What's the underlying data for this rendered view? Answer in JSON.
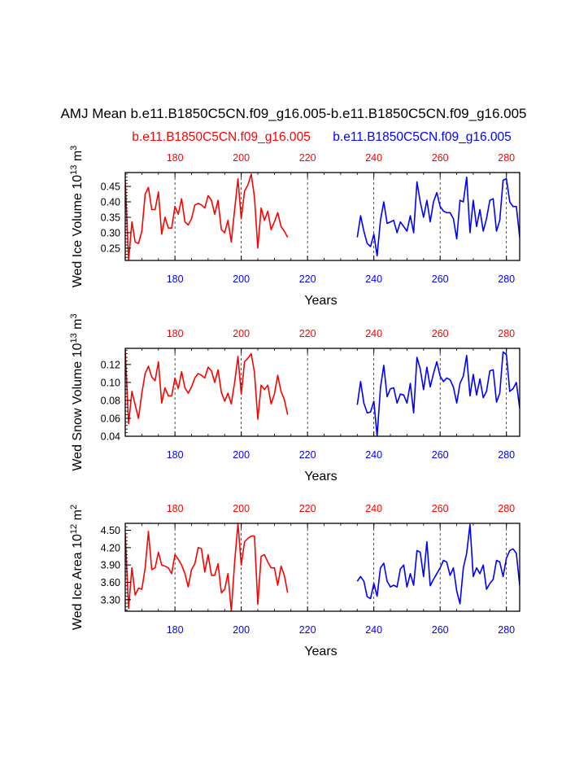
{
  "title": "AMJ Mean b.e11.B1850C5CN.f09_g16.005-b.e11.B1850C5CN.f09_g16.005",
  "subtitle_left": "b.e11.B1850C5CN.f09_g16.005",
  "subtitle_right": "b.e11.B1850C5CN.f09_g16.005",
  "colors": {
    "series1": "#ff0000",
    "series2": "#0000ff",
    "axis": "#000000"
  },
  "chart_data": [
    {
      "type": "line",
      "ylabel_main": "Wed Ice Volume 10",
      "ylabel_exp": "13",
      "ylabel_unit": "m",
      "ylabel_unit_exp": "3",
      "xlabel": "Years",
      "xlim": [
        165,
        284
      ],
      "ylim": [
        0.21,
        0.495
      ],
      "yticks": [
        0.25,
        0.3,
        0.35,
        0.4,
        0.45
      ],
      "ytick_labels": [
        "0.25",
        "0.30",
        "0.35",
        "0.40",
        "0.45"
      ],
      "xticks": [
        180,
        200,
        220,
        240,
        260,
        280
      ],
      "xticks_top": [
        180,
        200,
        220,
        240,
        260,
        280
      ],
      "xticks_bottom": [
        180,
        200,
        220,
        240,
        260,
        280
      ],
      "series": [
        {
          "x_start": 165,
          "values": [
            0.47,
            0.21,
            0.335,
            0.27,
            0.265,
            0.305,
            0.425,
            0.447,
            0.375,
            0.375,
            0.432,
            0.295,
            0.35,
            0.315,
            0.315,
            0.385,
            0.36,
            0.41,
            0.335,
            0.325,
            0.345,
            0.39,
            0.395,
            0.39,
            0.38,
            0.42,
            0.405,
            0.36,
            0.405,
            0.31,
            0.3,
            0.34,
            0.27,
            0.375,
            0.475,
            0.345,
            0.435,
            0.455,
            0.49,
            0.415,
            0.25,
            0.38,
            0.34,
            0.37,
            0.31,
            0.335,
            0.365,
            0.32,
            0.305,
            0.285
          ]
        },
        {
          "x_start": 235,
          "values": [
            0.285,
            0.355,
            0.305,
            0.265,
            0.255,
            0.295,
            0.225,
            0.34,
            0.4,
            0.33,
            0.335,
            0.34,
            0.3,
            0.335,
            0.32,
            0.305,
            0.355,
            0.3,
            0.465,
            0.4,
            0.35,
            0.405,
            0.335,
            0.4,
            0.43,
            0.385,
            0.37,
            0.365,
            0.365,
            0.345,
            0.28,
            0.405,
            0.4,
            0.48,
            0.3,
            0.405,
            0.32,
            0.375,
            0.305,
            0.345,
            0.405,
            0.41,
            0.305,
            0.34,
            0.47,
            0.475,
            0.4,
            0.385,
            0.385,
            0.285
          ]
        }
      ]
    },
    {
      "type": "line",
      "ylabel_main": "Wed Snow Volume 10",
      "ylabel_exp": "13",
      "ylabel_unit": "m",
      "ylabel_unit_exp": "3",
      "xlabel": "Years",
      "xlim": [
        165,
        284
      ],
      "ylim": [
        0.04,
        0.138
      ],
      "yticks": [
        0.04,
        0.06,
        0.08,
        0.1,
        0.12
      ],
      "ytick_labels": [
        "0.04",
        "0.06",
        "0.08",
        "0.10",
        "0.12"
      ],
      "xticks": [
        180,
        200,
        220,
        240,
        260,
        280
      ],
      "xticks_top": [
        180,
        200,
        220,
        240,
        260,
        280
      ],
      "xticks_bottom": [
        180,
        200,
        220,
        240,
        260,
        280
      ],
      "series": [
        {
          "x_start": 165,
          "values": [
            0.136,
            0.054,
            0.09,
            0.075,
            0.06,
            0.088,
            0.11,
            0.118,
            0.106,
            0.102,
            0.123,
            0.077,
            0.094,
            0.085,
            0.085,
            0.105,
            0.093,
            0.112,
            0.094,
            0.088,
            0.095,
            0.105,
            0.11,
            0.108,
            0.105,
            0.117,
            0.113,
            0.1,
            0.114,
            0.089,
            0.079,
            0.088,
            0.076,
            0.1,
            0.129,
            0.087,
            0.123,
            0.127,
            0.132,
            0.111,
            0.059,
            0.097,
            0.092,
            0.097,
            0.076,
            0.087,
            0.108,
            0.09,
            0.081,
            0.064
          ]
        },
        {
          "x_start": 235,
          "values": [
            0.075,
            0.101,
            0.077,
            0.066,
            0.067,
            0.079,
            0.04,
            0.094,
            0.119,
            0.084,
            0.093,
            0.094,
            0.077,
            0.087,
            0.086,
            0.077,
            0.099,
            0.066,
            0.128,
            0.115,
            0.092,
            0.117,
            0.095,
            0.11,
            0.123,
            0.107,
            0.101,
            0.105,
            0.103,
            0.095,
            0.077,
            0.099,
            0.107,
            0.13,
            0.085,
            0.109,
            0.086,
            0.104,
            0.083,
            0.09,
            0.113,
            0.114,
            0.078,
            0.088,
            0.134,
            0.131,
            0.09,
            0.093,
            0.1,
            0.071
          ]
        }
      ]
    },
    {
      "type": "line",
      "ylabel_main": "Wed Ice Area 10",
      "ylabel_exp": "12",
      "ylabel_unit": "m",
      "ylabel_unit_exp": "2",
      "xlabel": "Years",
      "xlim": [
        165,
        284
      ],
      "ylim": [
        3.1,
        4.62
      ],
      "yticks": [
        3.3,
        3.6,
        3.9,
        4.2,
        4.5
      ],
      "ytick_labels": [
        "3.30",
        "3.60",
        "3.90",
        "4.20",
        "4.50"
      ],
      "xticks": [
        180,
        200,
        220,
        240,
        260,
        280
      ],
      "xticks_top": [
        180,
        200,
        220,
        240,
        260,
        280
      ],
      "xticks_bottom": [
        180,
        200,
        220,
        240,
        260,
        280
      ],
      "series": [
        {
          "x_start": 165,
          "values": [
            4.45,
            3.15,
            3.85,
            3.38,
            3.5,
            3.48,
            3.85,
            4.48,
            3.82,
            3.85,
            4.12,
            3.9,
            3.88,
            3.85,
            3.75,
            4.08,
            4.0,
            3.9,
            3.75,
            3.52,
            3.82,
            3.92,
            4.2,
            4.18,
            3.78,
            4.08,
            3.72,
            3.72,
            3.92,
            3.42,
            3.48,
            3.75,
            3.1,
            3.95,
            4.62,
            3.9,
            4.3,
            4.36,
            4.4,
            4.4,
            3.22,
            4.05,
            4.08,
            3.95,
            3.85,
            3.85,
            3.55,
            3.88,
            3.72,
            3.42
          ]
        },
        {
          "x_start": 235,
          "values": [
            3.62,
            3.7,
            3.62,
            3.35,
            3.32,
            3.58,
            3.36,
            3.85,
            3.93,
            3.62,
            3.52,
            3.55,
            3.52,
            3.83,
            3.9,
            3.52,
            3.75,
            3.55,
            4.15,
            4.12,
            3.7,
            4.3,
            3.54,
            3.65,
            3.75,
            3.85,
            3.98,
            3.95,
            3.72,
            3.85,
            3.45,
            3.23,
            3.85,
            4.1,
            4.6,
            3.7,
            3.85,
            3.75,
            3.9,
            3.48,
            3.58,
            3.65,
            3.98,
            3.95,
            3.7,
            4.02,
            4.15,
            4.18,
            4.1,
            3.55
          ]
        }
      ]
    }
  ]
}
